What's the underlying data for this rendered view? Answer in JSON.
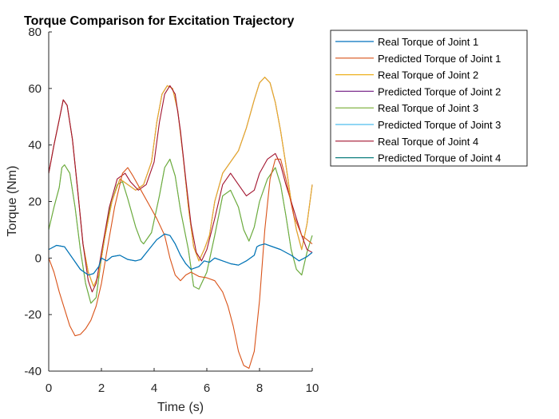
{
  "chart_data": {
    "type": "line",
    "title": "Torque Comparison for Excitation Trajectory",
    "xlabel": "Time (s)",
    "ylabel": "Torque (Nm)",
    "xlim": [
      0,
      10
    ],
    "ylim": [
      -40,
      80
    ],
    "xticks": [
      0,
      2,
      4,
      6,
      8,
      10
    ],
    "yticks": [
      -40,
      -20,
      0,
      20,
      40,
      60,
      80
    ],
    "grid": false,
    "legend": "top-right, outside plot area",
    "series": [
      {
        "name": "Real Torque of Joint 1",
        "color": "#0072BD",
        "x": [
          0,
          0.3,
          0.6,
          0.9,
          1.2,
          1.5,
          1.7,
          1.9,
          2.0,
          2.2,
          2.4,
          2.7,
          3.0,
          3.3,
          3.5,
          3.8,
          4.1,
          4.4,
          4.6,
          4.8,
          5.0,
          5.2,
          5.4,
          5.7,
          5.9,
          6.1,
          6.3,
          6.6,
          6.9,
          7.2,
          7.5,
          7.8,
          7.9,
          8.0,
          8.2,
          8.5,
          8.8,
          9.0,
          9.2,
          9.5,
          9.8,
          10.0
        ],
        "y": [
          3,
          4.5,
          4,
          0,
          -4,
          -6,
          -5.5,
          -3,
          0,
          -1,
          0.5,
          1,
          -0.5,
          -1,
          -0.5,
          3,
          6.5,
          8.5,
          8,
          5,
          1,
          -2,
          -4,
          -3,
          -1,
          -1.5,
          0,
          -1,
          -2,
          -2.5,
          -1,
          1,
          4,
          4.5,
          5,
          4,
          3,
          2,
          1,
          -1,
          0.5,
          2
        ]
      },
      {
        "name": "Predicted Torque of Joint 1",
        "color": "#D95319",
        "x": [
          0,
          0.2,
          0.4,
          0.6,
          0.8,
          1.0,
          1.2,
          1.4,
          1.6,
          1.8,
          2.0,
          2.2,
          2.5,
          2.8,
          3.0,
          3.2,
          3.5,
          3.8,
          4.1,
          4.4,
          4.6,
          4.8,
          5.0,
          5.2,
          5.4,
          5.7,
          6.0,
          6.3,
          6.6,
          6.8,
          7.0,
          7.2,
          7.4,
          7.6,
          7.8,
          8.0,
          8.2,
          8.4,
          8.6,
          8.8,
          9.0,
          9.3,
          9.6,
          10.0
        ],
        "y": [
          0,
          -5,
          -12,
          -18,
          -24,
          -27.5,
          -27,
          -25,
          -22,
          -17,
          -9,
          2,
          18,
          30,
          32,
          29,
          24,
          19,
          14,
          8,
          0,
          -6,
          -8,
          -6,
          -5,
          -6.5,
          -7,
          -8,
          -12,
          -17,
          -24,
          -33,
          -38,
          -39,
          -33,
          -15,
          10,
          28,
          35,
          35,
          28,
          15,
          8,
          5
        ]
      },
      {
        "name": "Real Torque of Joint 2",
        "color": "#EDB120",
        "x": [
          0,
          0.2,
          0.4,
          0.55,
          0.7,
          0.9,
          1.1,
          1.3,
          1.5,
          1.7,
          1.9,
          2.1,
          2.4,
          2.7,
          3.0,
          3.3,
          3.6,
          3.9,
          4.1,
          4.3,
          4.5,
          4.7,
          4.9,
          5.1,
          5.3,
          5.5,
          5.7,
          5.9,
          6.1,
          6.3,
          6.6,
          6.9,
          7.2,
          7.5,
          7.8,
          8.0,
          8.2,
          8.4,
          8.6,
          8.8,
          9.0,
          9.2,
          9.4,
          9.6,
          9.8,
          10.0
        ],
        "y": [
          30,
          40,
          49,
          56,
          54,
          42,
          24,
          5,
          -5,
          -10,
          -6,
          6,
          20,
          28,
          26,
          24,
          26,
          34,
          48,
          58,
          61,
          60,
          52,
          36,
          18,
          4,
          -1,
          3,
          8,
          20,
          30,
          34,
          38,
          46,
          56,
          62,
          64,
          62,
          55,
          45,
          33,
          20,
          10,
          3,
          12,
          26
        ]
      },
      {
        "name": "Predicted Torque of Joint 2",
        "color": "#7E2F8E",
        "x": [
          0,
          0.2,
          0.4,
          0.55,
          0.7,
          0.9,
          1.1,
          1.3,
          1.5,
          1.7,
          1.9,
          2.1,
          2.4,
          2.7,
          3.0,
          3.3,
          3.6,
          3.9,
          4.1,
          4.3,
          4.5,
          4.7,
          4.9,
          5.1,
          5.3,
          5.5,
          5.7,
          5.9,
          6.1,
          6.3,
          6.6,
          6.9,
          7.2,
          7.5,
          7.8,
          8.0,
          8.2,
          8.4,
          8.6,
          8.8,
          9.0,
          9.2,
          9.4,
          9.6,
          9.8,
          10.0
        ],
        "y": [
          30,
          40,
          49,
          56,
          54,
          42,
          24,
          5,
          -5,
          -10,
          -6,
          6,
          20,
          28,
          26,
          24,
          26,
          34,
          48,
          58,
          61,
          60,
          52,
          36,
          18,
          4,
          -1,
          3,
          8,
          20,
          30,
          34,
          38,
          46,
          56,
          62,
          64,
          62,
          55,
          45,
          33,
          20,
          10,
          3,
          12,
          26
        ]
      },
      {
        "name": "Real Torque of Joint 3",
        "color": "#77AC30",
        "x": [
          0,
          0.2,
          0.4,
          0.5,
          0.6,
          0.8,
          1.0,
          1.2,
          1.4,
          1.6,
          1.8,
          2.0,
          2.3,
          2.6,
          2.8,
          3.0,
          3.3,
          3.5,
          3.6,
          3.9,
          4.2,
          4.4,
          4.6,
          4.8,
          5.0,
          5.3,
          5.5,
          5.7,
          6.0,
          6.3,
          6.6,
          6.9,
          7.2,
          7.4,
          7.6,
          7.8,
          8.0,
          8.3,
          8.6,
          8.8,
          9.0,
          9.2,
          9.4,
          9.6,
          9.8,
          10.0
        ],
        "y": [
          10,
          18,
          25,
          32,
          33,
          30,
          18,
          3,
          -9,
          -16,
          -14,
          0,
          17,
          26,
          27,
          21,
          11,
          6,
          5,
          9,
          22,
          32,
          35,
          29,
          17,
          3,
          -10,
          -11,
          -5,
          8,
          22,
          24,
          18,
          10,
          6,
          11,
          20,
          28,
          32,
          26,
          15,
          3,
          -4,
          -6,
          2,
          8
        ]
      },
      {
        "name": "Predicted Torque of Joint 3",
        "color": "#4DBEEE",
        "x": [
          0,
          0.2,
          0.4,
          0.5,
          0.6,
          0.8,
          1.0,
          1.2,
          1.4,
          1.6,
          1.8,
          2.0,
          2.3,
          2.6,
          2.8,
          3.0,
          3.3,
          3.5,
          3.6,
          3.9,
          4.2,
          4.4,
          4.6,
          4.8,
          5.0,
          5.3,
          5.5,
          5.7,
          6.0,
          6.3,
          6.6,
          6.9,
          7.2,
          7.4,
          7.6,
          7.8,
          8.0,
          8.3,
          8.6,
          8.8,
          9.0,
          9.2,
          9.4,
          9.6,
          9.8,
          10.0
        ],
        "y": [
          10,
          18,
          25,
          32,
          33,
          30,
          18,
          3,
          -9,
          -16,
          -14,
          0,
          17,
          26,
          27,
          21,
          11,
          6,
          5,
          9,
          22,
          32,
          35,
          29,
          17,
          3,
          -10,
          -11,
          -5,
          8,
          22,
          24,
          18,
          10,
          6,
          11,
          20,
          28,
          32,
          26,
          15,
          3,
          -4,
          -6,
          2,
          8
        ]
      },
      {
        "name": "Real Torque of Joint 4",
        "color": "#A2142F",
        "x": [
          0,
          0.2,
          0.4,
          0.55,
          0.7,
          0.9,
          1.1,
          1.3,
          1.5,
          1.65,
          1.8,
          2.0,
          2.3,
          2.6,
          2.9,
          3.1,
          3.4,
          3.7,
          4.0,
          4.2,
          4.4,
          4.6,
          4.8,
          5.0,
          5.2,
          5.4,
          5.6,
          5.8,
          6.0,
          6.3,
          6.6,
          6.9,
          7.2,
          7.5,
          7.8,
          8.0,
          8.3,
          8.6,
          8.8,
          9.0,
          9.2,
          9.4,
          9.6,
          9.8,
          10.0
        ],
        "y": [
          30,
          40,
          49,
          56,
          54,
          42,
          24,
          5,
          -8,
          -12,
          -9,
          2,
          18,
          28,
          30,
          27,
          24,
          26,
          34,
          48,
          58,
          61,
          58,
          45,
          28,
          12,
          2,
          -1,
          3,
          14,
          26,
          30,
          26,
          22,
          24,
          30,
          35,
          37,
          33,
          26,
          20,
          14,
          8,
          3,
          2
        ]
      },
      {
        "name": "Predicted Torque of Joint 4",
        "color": "#0E7F7F",
        "x": [
          0,
          0.3,
          0.6,
          0.9,
          1.2,
          1.5,
          1.7,
          1.9,
          2.0,
          2.2,
          2.4,
          2.7,
          3.0,
          3.3,
          3.5,
          3.8,
          4.1,
          4.4,
          4.6,
          4.8,
          5.0,
          5.2,
          5.4,
          5.7,
          5.9,
          6.1,
          6.3,
          6.6,
          6.9,
          7.2,
          7.5,
          7.8,
          7.9,
          8.0,
          8.2,
          8.5,
          8.8,
          9.0,
          9.2,
          9.5,
          9.8,
          10.0
        ],
        "y": [
          3,
          4.5,
          4,
          0,
          -4,
          -6,
          -5.5,
          -3,
          0,
          -1,
          0.5,
          1,
          -0.5,
          -1,
          -0.5,
          3,
          6.5,
          8.5,
          8,
          5,
          1,
          -2,
          -4,
          -3,
          -1,
          -1.5,
          0,
          -1,
          -2,
          -2.5,
          -1,
          1,
          4,
          4.5,
          5,
          4,
          3,
          2,
          1,
          -1,
          0.5,
          2
        ]
      }
    ]
  }
}
